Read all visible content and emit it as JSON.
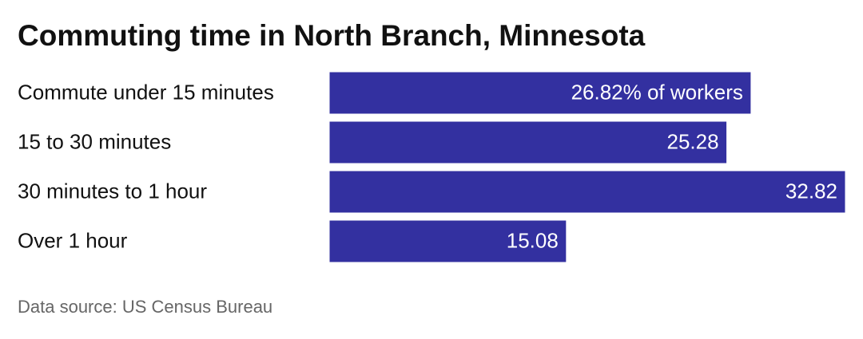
{
  "chart_data": {
    "type": "bar",
    "orientation": "horizontal",
    "title": "Commuting time in North Branch, Minnesota",
    "categories": [
      "Commute under 15 minutes",
      "15 to 30 minutes",
      "30 minutes to 1 hour",
      "Over 1 hour"
    ],
    "values": [
      26.82,
      25.28,
      32.82,
      15.08
    ],
    "value_labels": [
      "26.82% of workers",
      "25.28",
      "32.82",
      "15.08"
    ],
    "color": "#3330a0",
    "source": "Data source: US Census Bureau"
  }
}
